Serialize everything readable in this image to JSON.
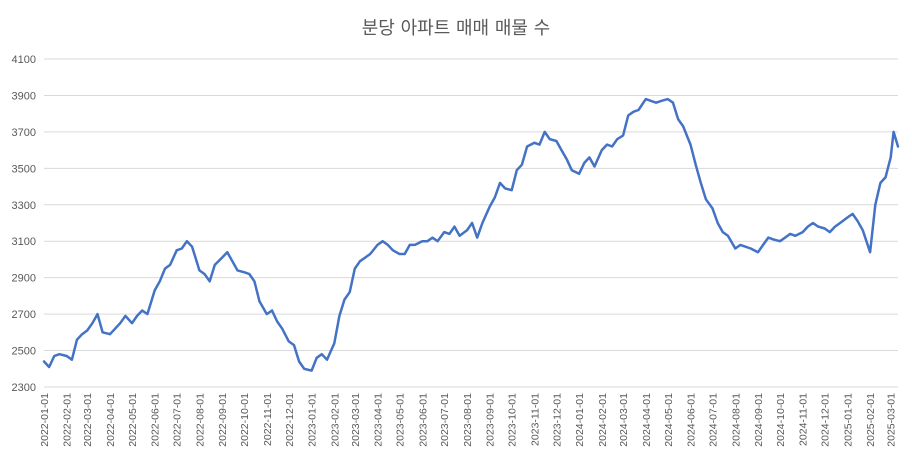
{
  "chart_data": {
    "type": "line",
    "title": "분당 아파트 매매 매물 수",
    "xlabel": "",
    "ylabel": "",
    "ylim": [
      2300,
      4100
    ],
    "yticks": [
      2300,
      2500,
      2700,
      2900,
      3100,
      3300,
      3500,
      3700,
      3900,
      4100
    ],
    "xlim": [
      "2022-01-01",
      "2025-03-11"
    ],
    "grid": true,
    "line_color": "#4472c4",
    "x_tick_labels": [
      "2022-01-01",
      "2022-02-01",
      "2022-03-01",
      "2022-04-01",
      "2022-05-01",
      "2022-06-01",
      "2022-07-01",
      "2022-08-01",
      "2022-09-01",
      "2022-10-01",
      "2022-11-01",
      "2022-12-01",
      "2023-01-01",
      "2023-02-01",
      "2023-03-01",
      "2023-04-01",
      "2023-05-01",
      "2023-06-01",
      "2023-07-01",
      "2023-08-01",
      "2023-09-01",
      "2023-10-01",
      "2023-11-01",
      "2023-12-01",
      "2024-01-01",
      "2024-02-01",
      "2024-03-01",
      "2024-04-01",
      "2024-05-01",
      "2024-06-01",
      "2024-07-01",
      "2024-08-01",
      "2024-09-01",
      "2024-10-01",
      "2024-11-01",
      "2024-12-01",
      "2025-01-01",
      "2025-02-01",
      "2025-03-01"
    ],
    "series": [
      {
        "x": [
          "2022-01-01",
          "2022-01-08",
          "2022-01-15",
          "2022-01-22",
          "2022-02-01",
          "2022-02-08",
          "2022-02-15",
          "2022-02-22",
          "2022-03-01",
          "2022-03-08",
          "2022-03-15",
          "2022-03-22",
          "2022-04-01",
          "2022-04-08",
          "2022-04-15",
          "2022-04-22",
          "2022-05-01",
          "2022-05-08",
          "2022-05-15",
          "2022-05-22",
          "2022-06-01",
          "2022-06-08",
          "2022-06-15",
          "2022-06-22",
          "2022-07-01",
          "2022-07-08",
          "2022-07-15",
          "2022-07-22",
          "2022-08-01",
          "2022-08-08",
          "2022-08-15",
          "2022-08-22",
          "2022-09-01",
          "2022-09-08",
          "2022-09-15",
          "2022-09-22",
          "2022-10-01",
          "2022-10-08",
          "2022-10-15",
          "2022-10-22",
          "2022-11-01",
          "2022-11-08",
          "2022-11-15",
          "2022-11-22",
          "2022-12-01",
          "2022-12-08",
          "2022-12-15",
          "2022-12-22",
          "2023-01-01",
          "2023-01-08",
          "2023-01-15",
          "2023-01-22",
          "2023-02-01",
          "2023-02-08",
          "2023-02-15",
          "2023-02-22",
          "2023-03-01",
          "2023-03-08",
          "2023-03-15",
          "2023-03-22",
          "2023-04-01",
          "2023-04-08",
          "2023-04-15",
          "2023-04-22",
          "2023-05-01",
          "2023-05-08",
          "2023-05-15",
          "2023-05-22",
          "2023-06-01",
          "2023-06-08",
          "2023-06-15",
          "2023-06-22",
          "2023-07-01",
          "2023-07-08",
          "2023-07-15",
          "2023-07-22",
          "2023-08-01",
          "2023-08-08",
          "2023-08-15",
          "2023-08-22",
          "2023-09-01",
          "2023-09-08",
          "2023-09-15",
          "2023-09-22",
          "2023-10-01",
          "2023-10-08",
          "2023-10-15",
          "2023-10-22",
          "2023-11-01",
          "2023-11-08",
          "2023-11-15",
          "2023-11-22",
          "2023-12-01",
          "2023-12-08",
          "2023-12-15",
          "2023-12-22",
          "2024-01-01",
          "2024-01-08",
          "2024-01-15",
          "2024-01-22",
          "2024-02-01",
          "2024-02-08",
          "2024-02-15",
          "2024-02-22",
          "2024-03-01",
          "2024-03-08",
          "2024-03-15",
          "2024-03-22",
          "2024-04-01",
          "2024-04-08",
          "2024-04-15",
          "2024-04-22",
          "2024-05-01",
          "2024-05-08",
          "2024-05-15",
          "2024-05-22",
          "2024-06-01",
          "2024-06-08",
          "2024-06-15",
          "2024-06-22",
          "2024-07-01",
          "2024-07-08",
          "2024-07-15",
          "2024-07-22",
          "2024-08-01",
          "2024-08-08",
          "2024-08-15",
          "2024-08-22",
          "2024-09-01",
          "2024-09-08",
          "2024-09-15",
          "2024-09-22",
          "2024-10-01",
          "2024-10-08",
          "2024-10-15",
          "2024-10-22",
          "2024-11-01",
          "2024-11-08",
          "2024-11-15",
          "2024-11-22",
          "2024-12-01",
          "2024-12-08",
          "2024-12-15",
          "2024-12-22",
          "2025-01-01",
          "2025-01-08",
          "2025-01-15",
          "2025-01-22",
          "2025-02-01",
          "2025-02-08",
          "2025-02-15",
          "2025-02-22",
          "2025-03-01",
          "2025-03-05",
          "2025-03-11"
        ],
        "values": [
          2440,
          2410,
          2470,
          2480,
          2470,
          2450,
          2560,
          2590,
          2610,
          2650,
          2700,
          2600,
          2590,
          2620,
          2650,
          2690,
          2650,
          2690,
          2720,
          2700,
          2830,
          2880,
          2950,
          2970,
          3050,
          3060,
          3100,
          3070,
          2940,
          2920,
          2880,
          2970,
          3010,
          3040,
          2990,
          2940,
          2930,
          2920,
          2880,
          2770,
          2700,
          2720,
          2660,
          2620,
          2550,
          2530,
          2440,
          2400,
          2390,
          2460,
          2480,
          2450,
          2540,
          2690,
          2780,
          2820,
          2950,
          2990,
          3010,
          3030,
          3080,
          3100,
          3080,
          3050,
          3030,
          3030,
          3080,
          3080,
          3100,
          3100,
          3120,
          3100,
          3150,
          3140,
          3180,
          3130,
          3160,
          3200,
          3120,
          3200,
          3290,
          3340,
          3420,
          3390,
          3380,
          3490,
          3520,
          3620,
          3640,
          3630,
          3700,
          3660,
          3650,
          3600,
          3550,
          3490,
          3470,
          3530,
          3560,
          3510,
          3600,
          3630,
          3620,
          3660,
          3680,
          3790,
          3810,
          3820,
          3880,
          3870,
          3860,
          3870,
          3880,
          3860,
          3770,
          3730,
          3630,
          3520,
          3420,
          3330,
          3280,
          3200,
          3150,
          3130,
          3060,
          3080,
          3070,
          3060,
          3040,
          3080,
          3120,
          3110,
          3100,
          3120,
          3140,
          3130,
          3150,
          3180,
          3200,
          3180,
          3170,
          3150,
          3180,
          3200,
          3230,
          3250,
          3210,
          3160,
          3040,
          3300,
          3420,
          3450,
          3560,
          3700,
          3620
        ]
      }
    ]
  }
}
